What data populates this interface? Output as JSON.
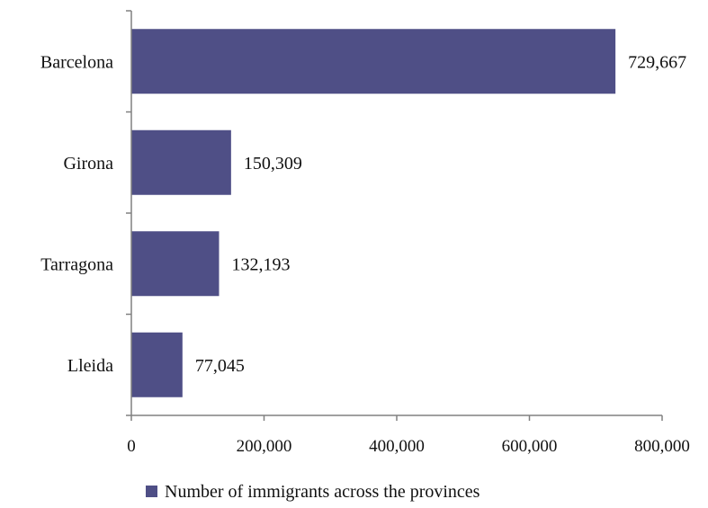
{
  "chart_data": {
    "type": "bar",
    "orientation": "horizontal",
    "categories": [
      "Barcelona",
      "Girona",
      "Tarragona",
      "Lleida"
    ],
    "values": [
      729667,
      150309,
      132193,
      77045
    ],
    "value_labels": [
      "729,667",
      "150,309",
      "132,193",
      "77,045"
    ],
    "xlim": [
      0,
      800000
    ],
    "xticks": [
      0,
      200000,
      400000,
      600000,
      800000
    ],
    "xtick_labels": [
      "0",
      "200,000",
      "400,000",
      "600,000",
      "800,000"
    ],
    "title": "",
    "xlabel": "",
    "ylabel": "",
    "grid": false,
    "legend": {
      "position": "bottom",
      "label": "Number of immigrants across the provinces"
    },
    "series": [
      {
        "name": "Number of immigrants across the provinces",
        "color": "#4f4f86"
      }
    ]
  }
}
